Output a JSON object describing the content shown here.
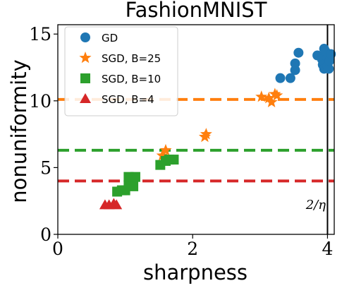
{
  "chart_data": {
    "type": "scatter",
    "title": "FashionMNIST",
    "xlabel": "sharpness",
    "ylabel": "nonuniformity",
    "xlim": [
      0,
      4.1
    ],
    "ylim": [
      0,
      15.7
    ],
    "x_ticks": [
      {
        "value": 0,
        "label": "0"
      },
      {
        "value": 2,
        "label": "2"
      },
      {
        "value": 4,
        "label": "4"
      }
    ],
    "y_ticks": [
      {
        "value": 0,
        "label": "0"
      },
      {
        "value": 5,
        "label": "5"
      },
      {
        "value": 10,
        "label": "10"
      },
      {
        "value": 15,
        "label": "15"
      }
    ],
    "grid": false,
    "legend_position": "top-left",
    "series": [
      {
        "name": "GD",
        "marker": "circle",
        "color": "#1f77b4",
        "points": [
          [
            3.3,
            11.7
          ],
          [
            3.45,
            11.7
          ],
          [
            3.52,
            12.3
          ],
          [
            3.52,
            12.8
          ],
          [
            3.57,
            13.6
          ],
          [
            3.85,
            13.4
          ],
          [
            3.92,
            13.1
          ],
          [
            3.95,
            13.9
          ],
          [
            3.97,
            13.7
          ],
          [
            3.93,
            12.7
          ],
          [
            3.95,
            12.4
          ],
          [
            4.0,
            12.6
          ],
          [
            4.0,
            13.2
          ],
          [
            4.02,
            12.4
          ],
          [
            4.03,
            13.0
          ],
          [
            4.05,
            13.5
          ]
        ]
      },
      {
        "name": "SGD, B=25",
        "marker": "star",
        "color": "#ff7f0e",
        "points": [
          [
            1.55,
            5.9
          ],
          [
            1.6,
            6.3
          ],
          [
            2.18,
            7.3
          ],
          [
            2.2,
            7.5
          ],
          [
            3.02,
            10.3
          ],
          [
            3.13,
            10.2
          ],
          [
            3.17,
            9.9
          ],
          [
            3.22,
            10.5
          ],
          [
            3.25,
            10.4
          ]
        ]
      },
      {
        "name": "SGD, B=10",
        "marker": "square",
        "color": "#2ca02c",
        "points": [
          [
            0.88,
            3.2
          ],
          [
            0.95,
            3.3
          ],
          [
            1.0,
            3.3
          ],
          [
            1.05,
            3.7
          ],
          [
            1.12,
            3.6
          ],
          [
            1.05,
            4.3
          ],
          [
            1.15,
            4.3
          ],
          [
            1.52,
            5.2
          ],
          [
            1.6,
            5.5
          ],
          [
            1.65,
            5.6
          ],
          [
            1.72,
            5.6
          ]
        ]
      },
      {
        "name": "SGD, B=4",
        "marker": "triangle",
        "color": "#d62728",
        "points": [
          [
            0.7,
            2.2
          ],
          [
            0.76,
            2.2
          ],
          [
            0.83,
            2.3
          ],
          [
            0.87,
            2.2
          ]
        ]
      }
    ],
    "reference_lines": [
      {
        "orientation": "horizontal",
        "y": 10.1,
        "color": "#ff7f0e",
        "style": "dashed"
      },
      {
        "orientation": "horizontal",
        "y": 6.3,
        "color": "#2ca02c",
        "style": "dashed"
      },
      {
        "orientation": "horizontal",
        "y": 4.0,
        "color": "#d62728",
        "style": "dashed"
      },
      {
        "orientation": "vertical",
        "x": 4.0,
        "color": "#000000",
        "style": "solid"
      }
    ],
    "annotations": [
      {
        "text": "2/η"
      }
    ]
  }
}
